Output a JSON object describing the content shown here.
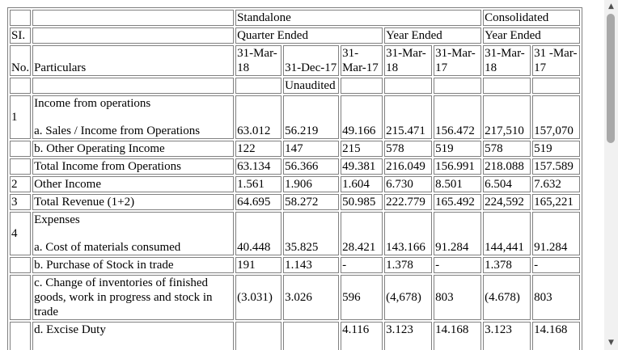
{
  "header": {
    "standalone": "Standalone",
    "consolidated": "Consolidated",
    "sl": "SI.",
    "quarter_ended": "Quarter Ended",
    "year_ended_s": "Year Ended",
    "year_ended_c": "Year Ended",
    "no": "No.",
    "particulars": "Particulars",
    "col1": "31-Mar-18",
    "col2": "31-Dec-17",
    "col3": "31-Mar-17",
    "col4": "31-Mar-18",
    "col5": "31-Mar-17",
    "col6": "31-Mar-18",
    "col7": "31 -Mar-17",
    "unaudited": "Unaudited"
  },
  "rows": [
    {
      "sl": "1",
      "label_top": "Income from operations",
      "label": "a. Sales / Income from Operations",
      "v": [
        "63.012",
        "56.219",
        "49.166",
        "215.471",
        "156.472",
        "217,510",
        "157,070"
      ]
    },
    {
      "sl": "",
      "label": "b. Other Operating Income",
      "v": [
        "122",
        "147",
        "215",
        "578",
        "519",
        "578",
        "519"
      ]
    },
    {
      "sl": "",
      "label": "Total Income from Operations",
      "v": [
        "63.134",
        "56.366",
        "49.381",
        "216.049",
        "156.991",
        "218.088",
        "157.589"
      ]
    },
    {
      "sl": "2",
      "label": "Other Income",
      "v": [
        "1.561",
        "1.906",
        "1.604",
        "6.730",
        "8.501",
        "6.504",
        "7.632"
      ]
    },
    {
      "sl": "3",
      "label": "Total Revenue (1+2)",
      "v": [
        "64.695",
        "58.272",
        "50.985",
        "222.779",
        "165.492",
        "224,592",
        "165,221"
      ]
    },
    {
      "sl": "4",
      "label_top": "Expenses",
      "label": "a. Cost of materials consumed",
      "v": [
        "40.448",
        "35.825",
        "28.421",
        "143.166",
        "91.284",
        "144,441",
        "91.284"
      ]
    },
    {
      "sl": "",
      "label": "b. Purchase of Stock in trade",
      "v": [
        "191",
        "1.143",
        "-",
        "1.378",
        "-",
        "1.378",
        "-"
      ]
    },
    {
      "sl": "",
      "label": "c. Change of inventories of finished goods, work in progress and stock in trade",
      "v": [
        "(3.031)",
        "3.026",
        "596",
        "(4,678)",
        "803",
        "(4.678)",
        "803"
      ]
    },
    {
      "sl": "",
      "label": "d. Excise Duty",
      "v": [
        "",
        "",
        "4.116",
        "3.123",
        "14.168",
        "3.123",
        "14.168"
      ]
    }
  ],
  "scrollbar": {
    "up_icon": "▲",
    "down_icon": "▼"
  }
}
